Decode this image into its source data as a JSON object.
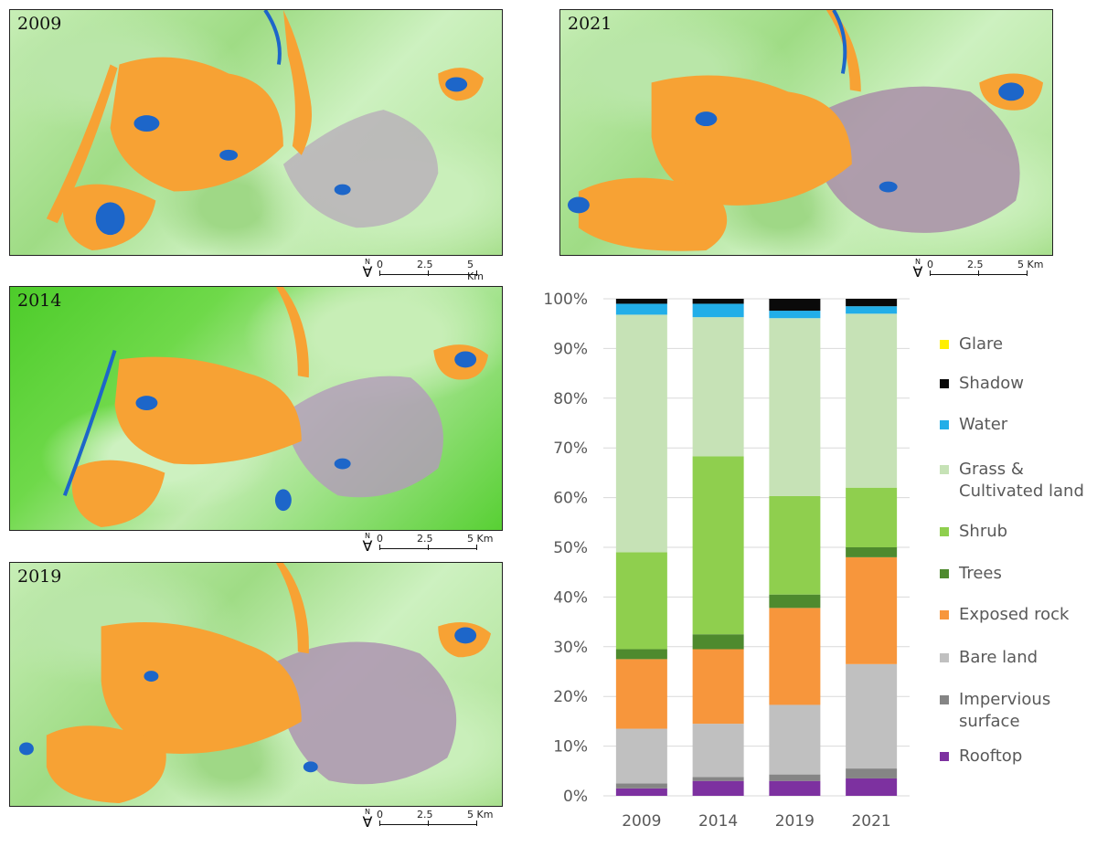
{
  "maps": [
    {
      "year": "2009"
    },
    {
      "year": "2021"
    },
    {
      "year": "2014"
    },
    {
      "year": "2019"
    }
  ],
  "scalebar": {
    "north": "N",
    "labels": [
      "0",
      "2.5",
      "5 Km"
    ]
  },
  "colors": {
    "Glare": "#ffef00",
    "Shadow": "#0a0a0a",
    "Water": "#22aee8",
    "Grass & Cultivated land": "#c6e2b6",
    "Shrub": "#8fcf4e",
    "Trees": "#4e8a2e",
    "Exposed rock": "#f7963c",
    "Bare land": "#c0c0c0",
    "Impervious surface": "#858585",
    "Rooftop": "#7d31a0"
  },
  "chart_data": {
    "type": "bar",
    "stacked": true,
    "categories": [
      "2009",
      "2014",
      "2019",
      "2021"
    ],
    "ylim": [
      0,
      100
    ],
    "yticks": [
      "0%",
      "10%",
      "20%",
      "30%",
      "40%",
      "50%",
      "60%",
      "70%",
      "80%",
      "90%",
      "100%"
    ],
    "legend_position": "right",
    "legend": [
      {
        "label": [
          "Glare"
        ],
        "key": "Glare"
      },
      {
        "label": [
          "Shadow"
        ],
        "key": "Shadow"
      },
      {
        "label": [
          "Water"
        ],
        "key": "Water"
      },
      {
        "label": [
          "Grass &",
          "Cultivated land"
        ],
        "key": "Grass & Cultivated land"
      },
      {
        "label": [
          "Shrub"
        ],
        "key": "Shrub"
      },
      {
        "label": [
          "Trees"
        ],
        "key": "Trees"
      },
      {
        "label": [
          "Exposed rock"
        ],
        "key": "Exposed rock"
      },
      {
        "label": [
          "Bare land"
        ],
        "key": "Bare land"
      },
      {
        "label": [
          "Impervious",
          "surface"
        ],
        "key": "Impervious surface"
      },
      {
        "label": [
          "Rooftop"
        ],
        "key": "Rooftop"
      }
    ],
    "series": [
      {
        "key": "Rooftop",
        "values": [
          1.5,
          3.0,
          3.0,
          3.5
        ]
      },
      {
        "key": "Impervious surface",
        "values": [
          1.0,
          0.8,
          1.3,
          2.0
        ]
      },
      {
        "key": "Bare land",
        "values": [
          11.0,
          10.7,
          14.0,
          21.0
        ]
      },
      {
        "key": "Exposed rock",
        "values": [
          14.0,
          15.0,
          19.5,
          21.5
        ]
      },
      {
        "key": "Trees",
        "values": [
          2.0,
          3.0,
          2.7,
          2.0
        ]
      },
      {
        "key": "Shrub",
        "values": [
          19.5,
          35.8,
          19.8,
          12.0
        ]
      },
      {
        "key": "Grass & Cultivated land",
        "values": [
          47.8,
          28.0,
          35.8,
          35.0
        ]
      },
      {
        "key": "Water",
        "values": [
          2.2,
          2.7,
          1.5,
          1.5
        ]
      },
      {
        "key": "Shadow",
        "values": [
          1.0,
          1.0,
          2.4,
          1.5
        ]
      },
      {
        "key": "Glare",
        "values": [
          0.0,
          0.0,
          0.0,
          0.0
        ]
      }
    ]
  }
}
